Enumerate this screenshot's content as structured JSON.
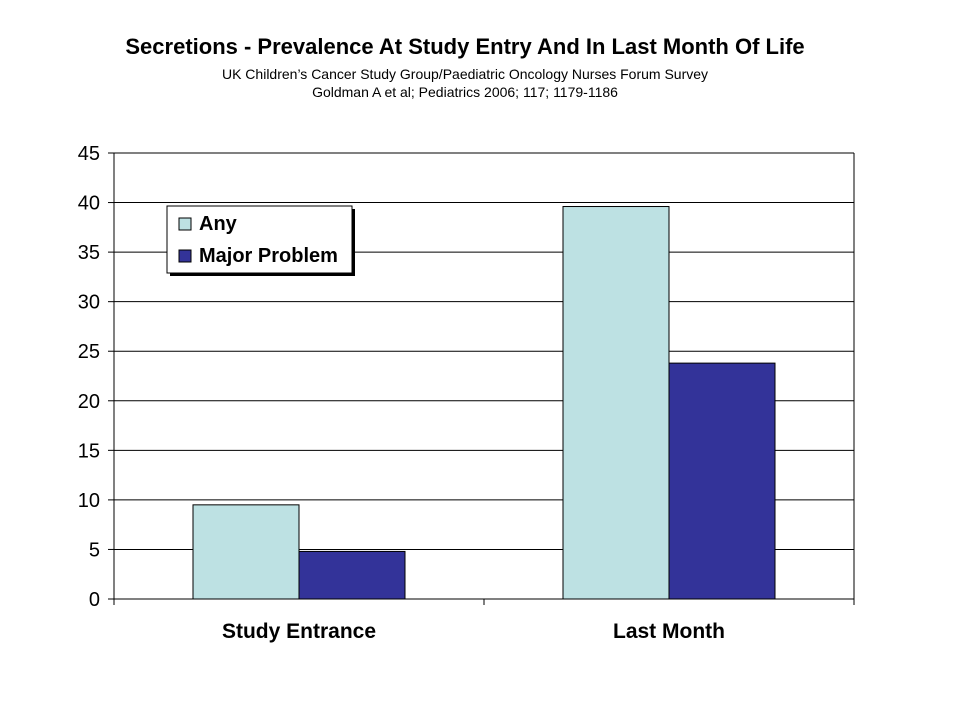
{
  "header": {
    "title": "Secretions - Prevalence At Study Entry And In Last Month Of Life",
    "subtitle_line1": "UK Children’s Cancer Study Group/Paediatric Oncology Nurses Forum Survey",
    "subtitle_line2": "Goldman A et al; Pediatrics 2006; 117; 1179-1186"
  },
  "chart_data": {
    "type": "bar",
    "title": "Secretions - Prevalence At Study Entry And In Last Month Of Life",
    "xlabel": "",
    "ylabel": "",
    "categories": [
      "Study Entrance",
      "Last Month"
    ],
    "series": [
      {
        "name": "Any",
        "values": [
          9.5,
          39.6
        ],
        "color": "#BDE1E3"
      },
      {
        "name": "Major Problem",
        "values": [
          4.8,
          23.8
        ],
        "color": "#333399"
      }
    ],
    "ylim": [
      0,
      45
    ],
    "yticks": [
      0,
      5,
      10,
      15,
      20,
      25,
      30,
      35,
      40,
      45
    ],
    "grid": true,
    "legend_position": "top-left"
  }
}
